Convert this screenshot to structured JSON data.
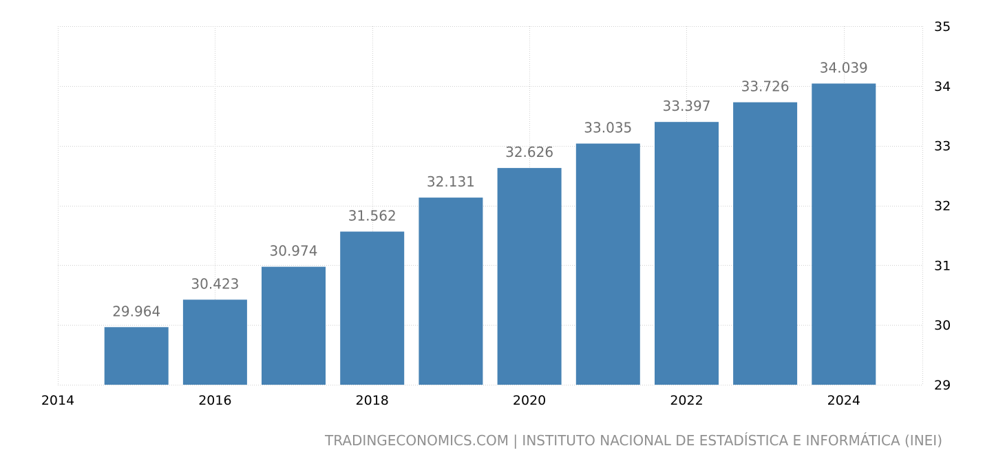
{
  "source": "TRADINGECONOMICS.COM | INSTITUTO NACIONAL DE ESTADÍSTICA E INFORMÁTICA (INEI)",
  "colors": {
    "bar": "#4682b4",
    "data_label": "#707070",
    "grid": "#cfcfcf"
  },
  "chart_data": {
    "type": "bar",
    "title": "",
    "xlabel": "",
    "ylabel": "",
    "categories": [
      "2015",
      "2016",
      "2017",
      "2018",
      "2019",
      "2020",
      "2021",
      "2022",
      "2023",
      "2024"
    ],
    "values": [
      29.964,
      30.423,
      30.974,
      31.562,
      32.131,
      32.626,
      33.035,
      33.397,
      33.726,
      34.039
    ],
    "value_labels": [
      "29.964",
      "30.423",
      "30.974",
      "31.562",
      "32.131",
      "32.626",
      "33.035",
      "33.397",
      "33.726",
      "34.039"
    ],
    "x_ticks": [
      "2014",
      "2016",
      "2018",
      "2020",
      "2022",
      "2024"
    ],
    "y_ticks": [
      "29",
      "30",
      "31",
      "32",
      "33",
      "34",
      "35"
    ],
    "ylim": [
      29,
      35
    ],
    "xlim": [
      2014,
      2025
    ],
    "y_axis_side": "right",
    "grid": true,
    "legend": "none"
  }
}
